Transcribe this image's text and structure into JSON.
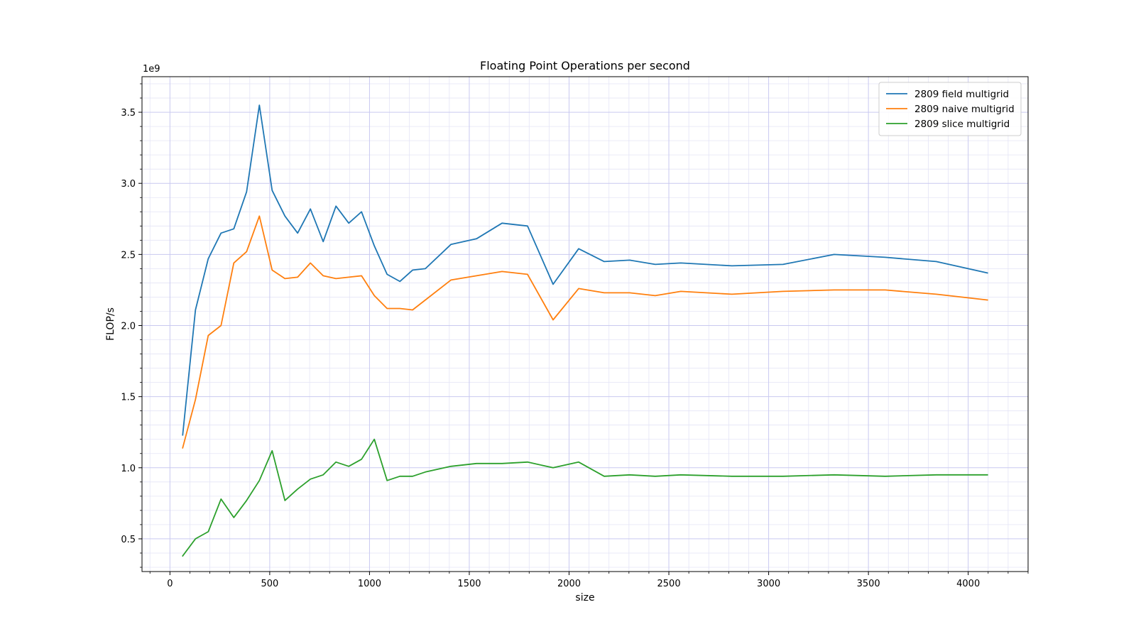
{
  "chart_data": {
    "type": "line",
    "title": "Floating Point Operations per second",
    "xlabel": "size",
    "ylabel": "FLOP/s",
    "y_offset_label": "1e9",
    "y_scale_factor": 1000000000,
    "xlim": [
      -140,
      4300
    ],
    "ylim": [
      0.27,
      3.75
    ],
    "x_ticks": [
      0,
      500,
      1000,
      1500,
      2000,
      2500,
      3000,
      3500,
      4000
    ],
    "x_tick_labels": [
      "0",
      "500",
      "1000",
      "1500",
      "2000",
      "2500",
      "3000",
      "3500",
      "4000"
    ],
    "y_ticks": [
      0.5,
      1.0,
      1.5,
      2.0,
      2.5,
      3.0,
      3.5
    ],
    "y_tick_labels": [
      "0.5",
      "1.0",
      "1.5",
      "2.0",
      "2.5",
      "3.0",
      "3.5"
    ],
    "grid": true,
    "minor_grid": true,
    "legend_position": "top-right",
    "series": [
      {
        "name": "2809 field multigrid",
        "color": "#1f77b4",
        "x": [
          64,
          128,
          192,
          256,
          320,
          384,
          448,
          512,
          576,
          640,
          704,
          768,
          832,
          896,
          960,
          1024,
          1088,
          1152,
          1216,
          1280,
          1408,
          1536,
          1664,
          1792,
          1920,
          2048,
          2176,
          2304,
          2432,
          2560,
          2816,
          3072,
          3328,
          3584,
          3840,
          4096
        ],
        "y": [
          1.23,
          2.11,
          2.47,
          2.65,
          2.68,
          2.94,
          3.55,
          2.95,
          2.77,
          2.65,
          2.82,
          2.59,
          2.84,
          2.72,
          2.8,
          2.56,
          2.36,
          2.31,
          2.39,
          2.4,
          2.57,
          2.61,
          2.72,
          2.7,
          2.29,
          2.54,
          2.45,
          2.46,
          2.43,
          2.44,
          2.42,
          2.43,
          2.5,
          2.48,
          2.45,
          2.37
        ]
      },
      {
        "name": "2809 naive multigrid",
        "color": "#ff7f0e",
        "x": [
          64,
          128,
          192,
          256,
          320,
          384,
          448,
          512,
          576,
          640,
          704,
          768,
          832,
          896,
          960,
          1024,
          1088,
          1152,
          1216,
          1280,
          1408,
          1536,
          1664,
          1792,
          1920,
          2048,
          2176,
          2304,
          2432,
          2560,
          2816,
          3072,
          3328,
          3584,
          3840,
          4096
        ],
        "y": [
          1.14,
          1.48,
          1.93,
          2.0,
          2.44,
          2.52,
          2.77,
          2.39,
          2.33,
          2.34,
          2.44,
          2.35,
          2.33,
          2.34,
          2.35,
          2.21,
          2.12,
          2.12,
          2.11,
          2.18,
          2.32,
          2.35,
          2.38,
          2.36,
          2.04,
          2.26,
          2.23,
          2.23,
          2.21,
          2.24,
          2.22,
          2.24,
          2.25,
          2.25,
          2.22,
          2.18
        ]
      },
      {
        "name": "2809 slice multigrid",
        "color": "#2ca02c",
        "x": [
          64,
          128,
          192,
          256,
          320,
          384,
          448,
          512,
          576,
          640,
          704,
          768,
          832,
          896,
          960,
          1024,
          1088,
          1152,
          1216,
          1280,
          1408,
          1536,
          1664,
          1792,
          1920,
          2048,
          2176,
          2304,
          2432,
          2560,
          2816,
          3072,
          3328,
          3584,
          3840,
          4096
        ],
        "y": [
          0.38,
          0.5,
          0.55,
          0.78,
          0.65,
          0.77,
          0.91,
          1.12,
          0.77,
          0.85,
          0.92,
          0.95,
          1.04,
          1.01,
          1.06,
          1.2,
          0.91,
          0.94,
          0.94,
          0.97,
          1.01,
          1.03,
          1.03,
          1.04,
          1.0,
          1.04,
          0.94,
          0.95,
          0.94,
          0.95,
          0.94,
          0.94,
          0.95,
          0.94,
          0.95,
          0.95
        ]
      }
    ]
  }
}
